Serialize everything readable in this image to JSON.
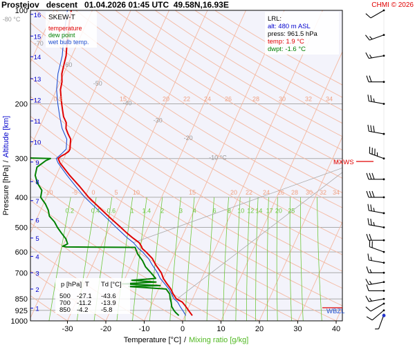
{
  "header": {
    "title": "Prostejov   descent   01.04.2026 01:45 UTC  49.58N,16.93E",
    "credit": "CHMI © 2026"
  },
  "colors": {
    "temperature": "#e00000",
    "dew_point": "#008000",
    "wet_bulb": "#1f4fd0",
    "isotherm": "#f4b8a0",
    "dry_adiabat": "#f4b8a0",
    "mixing_ratio": "#6ec83c",
    "isobar": "#aaaaaa",
    "altitude": "#0000cc",
    "credit": "#e00000",
    "frame": "#000000"
  },
  "legend": {
    "title": "SKEW-T",
    "items": [
      {
        "label": "temperature",
        "color": "#e00000"
      },
      {
        "label": "dew point",
        "color": "#008000"
      },
      {
        "label": "wet bulb temp.",
        "color": "#1f4fd0"
      }
    ]
  },
  "lrl": {
    "title": "LRL:",
    "alt": "alt: 480 m ASL",
    "press": "press: 961.5 hPa",
    "temp": "temp: 1.9 °C",
    "dwpt": "dwpt: -1.6 °C"
  },
  "table": {
    "headers": [
      "p [hPa]",
      "T",
      "Td [°C]"
    ],
    "rows": [
      [
        "500",
        "-27.1",
        "-43.6"
      ],
      [
        "700",
        "-11.2",
        "-13.9"
      ],
      [
        "850",
        "-4.2",
        "-5.8"
      ]
    ]
  },
  "markers": {
    "mxws": "MXWS",
    "wbzl": "WBZL"
  },
  "axes": {
    "xlabel": "Temperature [°C]",
    "xlabel_sep": "/",
    "xlabel2": "Mixing ratio [g/kg]",
    "ylabel": "Pressure [hPa]",
    "ylabel_sep": "/",
    "ylabel2": "Altitude [km]"
  },
  "chart_data": {
    "type": "line",
    "chart_kind": "skew-T log-p diagram",
    "y_scale": "log pressure",
    "ylim_hpa": [
      1000,
      100
    ],
    "xlim_degC_at_1000hpa": [
      -38,
      45
    ],
    "x_ticks": [
      -30,
      -20,
      -10,
      0,
      10,
      20,
      30,
      40
    ],
    "pressure_ticks": [
      100,
      200,
      300,
      400,
      500,
      600,
      700,
      850,
      925,
      1000
    ],
    "altitude_ticks_km": [
      {
        "km": 1,
        "p": 910
      },
      {
        "km": 2,
        "p": 790
      },
      {
        "km": 3,
        "p": 700
      },
      {
        "km": 4,
        "p": 620
      },
      {
        "km": 5,
        "p": 541
      },
      {
        "km": 6,
        "p": 472
      },
      {
        "km": 7,
        "p": 410
      },
      {
        "km": 8,
        "p": 356
      },
      {
        "km": 9,
        "p": 308
      },
      {
        "km": 10,
        "p": 265
      },
      {
        "km": 11,
        "p": 227
      },
      {
        "km": 12,
        "p": 194
      },
      {
        "km": 13,
        "p": 166
      },
      {
        "km": 14,
        "p": 141
      },
      {
        "km": 15,
        "p": 121
      },
      {
        "km": 16,
        "p": 103
      }
    ],
    "isotherm_labels": [
      {
        "t": -80,
        "p": 107,
        "text": "-80 °C"
      },
      {
        "t": -70,
        "p": 128,
        "text": "-70"
      },
      {
        "t": -60,
        "p": 150,
        "text": "-60"
      },
      {
        "t": -50,
        "p": 172,
        "text": "-50"
      },
      {
        "t": -40,
        "p": 199,
        "text": "-40"
      },
      {
        "t": -30,
        "p": 226,
        "text": "-30"
      },
      {
        "t": -20,
        "p": 258,
        "text": "-20"
      },
      {
        "t": -10,
        "p": 298,
        "text": "-10 °C"
      }
    ],
    "dry_adiabat_labels_200": [
      "0",
      "5",
      "15",
      "20",
      "22",
      "24",
      "26",
      "28",
      "30",
      "32",
      "34"
    ],
    "dry_adiabat_labels_400": [
      "-10",
      "-5",
      "0",
      "5",
      "10",
      "15",
      "20",
      "22",
      "24",
      "26",
      "28",
      "30",
      "32",
      "34"
    ],
    "mixing_ratio_labels": [
      "0.2",
      "0.4",
      "0.6",
      "1",
      "1.4",
      "2",
      "3",
      "4",
      "6",
      "8",
      "10",
      "12",
      "14",
      "17",
      "20",
      "25"
    ],
    "series": [
      {
        "name": "temperature",
        "points": [
          [
            961.5,
            1.9
          ],
          [
            930,
            0.5
          ],
          [
            900,
            -0.8
          ],
          [
            870,
            -2.3
          ],
          [
            850,
            -4.2
          ],
          [
            820,
            -5.6
          ],
          [
            790,
            -6.8
          ],
          [
            760,
            -8.4
          ],
          [
            730,
            -10.0
          ],
          [
            700,
            -11.2
          ],
          [
            660,
            -13.6
          ],
          [
            630,
            -15.2
          ],
          [
            600,
            -17.6
          ],
          [
            585,
            -19.0
          ],
          [
            575,
            -19.5
          ],
          [
            560,
            -20.5
          ],
          [
            540,
            -22.8
          ],
          [
            520,
            -25.0
          ],
          [
            500,
            -27.1
          ],
          [
            470,
            -30.5
          ],
          [
            440,
            -34.0
          ],
          [
            400,
            -39.0
          ],
          [
            370,
            -42.5
          ],
          [
            340,
            -46.5
          ],
          [
            310,
            -50.5
          ],
          [
            300,
            -51.5
          ],
          [
            295,
            -51.0
          ],
          [
            290,
            -50.2
          ],
          [
            285,
            -49.6
          ],
          [
            280,
            -49.5
          ],
          [
            270,
            -50.0
          ],
          [
            260,
            -50.5
          ],
          [
            250,
            -51.8
          ],
          [
            240,
            -53.0
          ],
          [
            230,
            -53.6
          ],
          [
            220,
            -55.0
          ],
          [
            210,
            -56.0
          ],
          [
            200,
            -57.0
          ],
          [
            190,
            -58.0
          ],
          [
            180,
            -59.0
          ],
          [
            170,
            -59.5
          ],
          [
            160,
            -60.5
          ],
          [
            150,
            -61.0
          ],
          [
            140,
            -61.5
          ],
          [
            130,
            -62.5
          ],
          [
            120,
            -63.5
          ],
          [
            110,
            -64.5
          ],
          [
            100,
            -65.5
          ]
        ]
      },
      {
        "name": "dew point",
        "points": [
          [
            961.5,
            -1.6
          ],
          [
            940,
            -2.8
          ],
          [
            925,
            -3.5
          ],
          [
            900,
            -4.5
          ],
          [
            870,
            -5.2
          ],
          [
            850,
            -5.8
          ],
          [
            820,
            -6.5
          ],
          [
            790,
            -8.0
          ],
          [
            775,
            -18.0
          ],
          [
            770,
            -10.0
          ],
          [
            760,
            -20.0
          ],
          [
            750,
            -11.5
          ],
          [
            740,
            -18.0
          ],
          [
            730,
            -12.0
          ],
          [
            700,
            -13.9
          ],
          [
            670,
            -16.0
          ],
          [
            640,
            -17.5
          ],
          [
            610,
            -19.5
          ],
          [
            590,
            -20.5
          ],
          [
            580,
            -21.0
          ],
          [
            578,
            -39.0
          ],
          [
            575,
            -40.0
          ],
          [
            565,
            -39.0
          ],
          [
            545,
            -40.0
          ],
          [
            520,
            -42.0
          ],
          [
            500,
            -43.6
          ],
          [
            480,
            -45.0
          ],
          [
            460,
            -47.0
          ],
          [
            440,
            -48.0
          ],
          [
            420,
            -49.5
          ],
          [
            400,
            -51.5
          ],
          [
            380,
            -52.0
          ],
          [
            360,
            -54.0
          ],
          [
            340,
            -55.5
          ],
          [
            320,
            -56.0
          ],
          [
            305,
            -54.5
          ],
          [
            300,
            -53.5
          ],
          [
            297,
            -70.0
          ],
          [
            290,
            -74.0
          ],
          [
            280,
            -77.0
          ],
          [
            270,
            -79.0
          ],
          [
            260,
            -81.0
          ],
          [
            250,
            -82.0
          ],
          [
            240,
            -83.0
          ],
          [
            230,
            -85.0
          ],
          [
            220,
            -87.0
          ],
          [
            210,
            -89.0
          ],
          [
            200,
            -90.0
          ],
          [
            180,
            -92.0
          ],
          [
            160,
            -93.0
          ],
          [
            140,
            -95.0
          ],
          [
            120,
            -97.0
          ],
          [
            100,
            -99.0
          ]
        ]
      },
      {
        "name": "wet bulb temp.",
        "points": [
          [
            961.5,
            0.2
          ],
          [
            930,
            -1.0
          ],
          [
            900,
            -2.3
          ],
          [
            870,
            -3.5
          ],
          [
            850,
            -4.8
          ],
          [
            820,
            -6.0
          ],
          [
            790,
            -7.3
          ],
          [
            760,
            -9.0
          ],
          [
            730,
            -10.8
          ],
          [
            700,
            -12.2
          ],
          [
            660,
            -14.5
          ],
          [
            630,
            -16.2
          ],
          [
            600,
            -18.5
          ],
          [
            585,
            -20.0
          ],
          [
            560,
            -22.0
          ],
          [
            540,
            -24.2
          ],
          [
            520,
            -26.2
          ],
          [
            500,
            -28.3
          ],
          [
            470,
            -31.5
          ],
          [
            440,
            -35.0
          ],
          [
            400,
            -40.0
          ],
          [
            370,
            -43.5
          ],
          [
            340,
            -47.2
          ],
          [
            310,
            -51.0
          ],
          [
            300,
            -52.0
          ],
          [
            290,
            -51.2
          ],
          [
            280,
            -50.5
          ],
          [
            260,
            -51.5
          ],
          [
            240,
            -54.0
          ],
          [
            220,
            -56.0
          ],
          [
            200,
            -58.0
          ],
          [
            180,
            -60.0
          ],
          [
            160,
            -61.5
          ],
          [
            140,
            -62.5
          ],
          [
            120,
            -64.5
          ],
          [
            100,
            -66.5
          ]
        ]
      }
    ],
    "wind_barbs": [
      {
        "p": 955,
        "dir": 200,
        "speed_kt": 5
      },
      {
        "p": 925,
        "dir": 230,
        "speed_kt": 10
      },
      {
        "p": 880,
        "dir": 240,
        "speed_kt": 10
      },
      {
        "p": 850,
        "dir": 260,
        "speed_kt": 15
      },
      {
        "p": 800,
        "dir": 270,
        "speed_kt": 10
      },
      {
        "p": 750,
        "dir": 260,
        "speed_kt": 15
      },
      {
        "p": 700,
        "dir": 270,
        "speed_kt": 15
      },
      {
        "p": 650,
        "dir": 280,
        "speed_kt": 15
      },
      {
        "p": 600,
        "dir": 290,
        "speed_kt": 20
      },
      {
        "p": 550,
        "dir": 270,
        "speed_kt": 20
      },
      {
        "p": 500,
        "dir": 280,
        "speed_kt": 25
      },
      {
        "p": 450,
        "dir": 280,
        "speed_kt": 25
      },
      {
        "p": 400,
        "dir": 270,
        "speed_kt": 30
      },
      {
        "p": 350,
        "dir": 270,
        "speed_kt": 30
      },
      {
        "p": 300,
        "dir": 290,
        "speed_kt": 35
      },
      {
        "p": 250,
        "dir": 280,
        "speed_kt": 30
      },
      {
        "p": 200,
        "dir": 280,
        "speed_kt": 25
      },
      {
        "p": 170,
        "dir": 270,
        "speed_kt": 20
      },
      {
        "p": 140,
        "dir": 260,
        "speed_kt": 15
      },
      {
        "p": 120,
        "dir": 250,
        "speed_kt": 15
      },
      {
        "p": 100,
        "dir": 240,
        "speed_kt": 10
      }
    ],
    "grid": true
  }
}
